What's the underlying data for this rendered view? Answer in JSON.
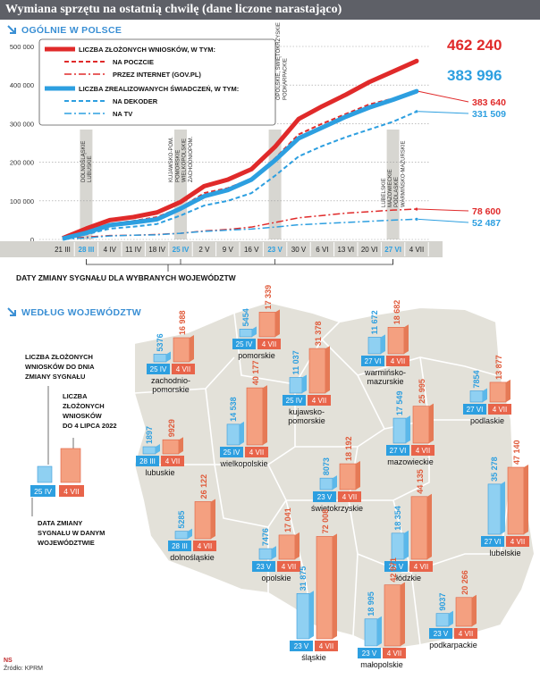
{
  "title": "Wymiana sprzętu na ostatnią chwilę (dane liczone narastająco)",
  "section1": "OGÓLNIE W POLSCE",
  "section2": "WEDŁUG WOJEWÓDZTW",
  "source": "Źródło: KPRM",
  "agency": "NS",
  "colors": {
    "red": "#e02a2a",
    "blue": "#2d9fe0",
    "grey": "#d4d3ce",
    "map": "#e3e1d9"
  },
  "chart_data": {
    "type": "line",
    "x": [
      "21 III",
      "28 III",
      "4 IV",
      "11 IV",
      "18 IV",
      "25 IV",
      "2 V",
      "9 V",
      "16 V",
      "23 V",
      "30 V",
      "6 VI",
      "13 VI",
      "20 VI",
      "27 VI",
      "4 VII"
    ],
    "highlight_x": [
      "28 III",
      "25 IV",
      "23 V",
      "27 VI"
    ],
    "ylim": [
      0,
      500000
    ],
    "yticks": [
      "0",
      "100 000",
      "200 000",
      "300 000",
      "400 000",
      "500 000"
    ],
    "series": [
      {
        "name": "LICZBA ZŁOŻONYCH WNIOSKÓW, W TYM:",
        "color": "#e02a2a",
        "style": "solid",
        "width": 5,
        "values": [
          3000,
          28000,
          50000,
          58000,
          70000,
          97000,
          138000,
          155000,
          182000,
          240000,
          312000,
          345000,
          375000,
          408000,
          435000,
          462240
        ],
        "end_label": "462 240"
      },
      {
        "name": "NA POCZCIE",
        "color": "#e02a2a",
        "style": "dash",
        "width": 2,
        "values": [
          2000,
          22000,
          40000,
          48000,
          58000,
          82000,
          120000,
          133000,
          157000,
          210000,
          272000,
          300000,
          325000,
          350000,
          365000,
          383640
        ],
        "end_label": "383 640"
      },
      {
        "name": "PRZEZ INTERNET (GOV.PL)",
        "color": "#e02a2a",
        "style": "dashdot",
        "width": 1.5,
        "values": [
          1000,
          6000,
          10000,
          11000,
          13000,
          16000,
          22000,
          26000,
          32000,
          44000,
          56000,
          62000,
          68000,
          72000,
          76000,
          78600
        ],
        "end_label": "78 600"
      },
      {
        "name": "LICZBA ZREALIZOWANYCH ŚWIADCZEŃ, W TYM:",
        "color": "#2d9fe0",
        "style": "solid",
        "width": 5,
        "values": [
          2000,
          17000,
          37000,
          44000,
          52000,
          80000,
          112000,
          128000,
          155000,
          205000,
          262000,
          290000,
          318000,
          342000,
          362000,
          383996
        ],
        "end_label": "383 996"
      },
      {
        "name": "NA DEKODER",
        "color": "#2d9fe0",
        "style": "dash",
        "width": 2,
        "values": [
          1500,
          13000,
          28000,
          33000,
          40000,
          62000,
          88000,
          100000,
          120000,
          165000,
          215000,
          242000,
          265000,
          285000,
          305000,
          331509
        ],
        "end_label": "331 509"
      },
      {
        "name": "NA TV",
        "color": "#2d9fe0",
        "style": "dashdot",
        "width": 1.5,
        "values": [
          500,
          4000,
          9000,
          11000,
          12000,
          16000,
          21000,
          24000,
          27000,
          32000,
          38000,
          41000,
          44000,
          47000,
          50000,
          52487
        ],
        "end_label": "52 487"
      }
    ],
    "annotations": [
      {
        "x": "28 III",
        "text": "DOLNOŚLĄSKIE LUBUSKIE"
      },
      {
        "x": "25 IV",
        "text": "KUJAWSKO-POM. POMORSKIE WIELKOPOLSKIE ZACHODNIOPOM."
      },
      {
        "x": "23 V",
        "text": "ŁÓDZKIE, ŚLĄSKIE MAŁOPOLSKIE OPOLSKIE, ŚWIĘTOKRZYSKIE PODKARPACKIE"
      },
      {
        "x": "27 VI",
        "text": "LUBELSKIE MAZOWIECKIE PODLASKIE WARMIŃSKO-MAZURSKIE"
      }
    ],
    "bracket_label": "DATY ZMIANY SYGNAŁU DLA WYBRANYCH WOJEWÓDZTW"
  },
  "legend_card": {
    "label_a": [
      "LICZBA ZŁOŻONYCH",
      "WNIOSKÓW DO DNIA",
      "ZMIANY SYGNAŁU"
    ],
    "label_b": [
      "LICZBA",
      "ZŁOŻONYCH",
      "WNIOSKÓW",
      "DO 4 LIPCA 2022"
    ],
    "label_c": [
      "DATA ZMIANY",
      "SYGNAŁU W DANYM",
      "WOJEWÓDZTWIE"
    ],
    "date_a": "25 IV",
    "date_b": "4 VII"
  },
  "regions": [
    {
      "name": [
        "zachodnio-",
        "pomorskie"
      ],
      "date": "25 IV",
      "before": 5376,
      "before_label": "5376",
      "after": 16988,
      "after_label": "16 988"
    },
    {
      "name": [
        "pomorskie"
      ],
      "date": "25 IV",
      "before": 5454,
      "before_label": "5454",
      "after": 17339,
      "after_label": "17 339"
    },
    {
      "name": [
        "warmińsko-",
        "mazurskie"
      ],
      "date": "27 VI",
      "before": 11672,
      "before_label": "11 672",
      "after": 18682,
      "after_label": "18 682"
    },
    {
      "name": [
        "podlaskie"
      ],
      "date": "27 VI",
      "before": 7854,
      "before_label": "7854",
      "after": 13877,
      "after_label": "13 877"
    },
    {
      "name": [
        "kujawsko-",
        "pomorskie"
      ],
      "date": "25 IV",
      "before": 11037,
      "before_label": "11 037",
      "after": 31378,
      "after_label": "31 378"
    },
    {
      "name": [
        "lubuskie"
      ],
      "date": "28 III",
      "before": 1897,
      "before_label": "1897",
      "after": 9929,
      "after_label": "9929"
    },
    {
      "name": [
        "wielkopolskie"
      ],
      "date": "25 IV",
      "before": 14538,
      "before_label": "14 538",
      "after": 40177,
      "after_label": "40 177"
    },
    {
      "name": [
        "mazowieckie"
      ],
      "date": "27 VI",
      "before": 17549,
      "before_label": "17 549",
      "after": 25995,
      "after_label": "25 995"
    },
    {
      "name": [
        "świętokrzyskie"
      ],
      "date": "23 V",
      "before": 8073,
      "before_label": "8073",
      "after": 18192,
      "after_label": "18 192"
    },
    {
      "name": [
        "dolnośląskie"
      ],
      "date": "28 III",
      "before": 5285,
      "before_label": "5285",
      "after": 26122,
      "after_label": "26 122"
    },
    {
      "name": [
        "opolskie"
      ],
      "date": "23 V",
      "before": 7476,
      "before_label": "7476",
      "after": 17041,
      "after_label": "17 041"
    },
    {
      "name": [
        "łódzkie"
      ],
      "date": "23 V",
      "before": 18354,
      "before_label": "18 354",
      "after": 44135,
      "after_label": "44 135"
    },
    {
      "name": [
        "lubelskie"
      ],
      "date": "27 VI",
      "before": 35278,
      "before_label": "35 278",
      "after": 47140,
      "after_label": "47 140"
    },
    {
      "name": [
        "śląskie"
      ],
      "date": "23 V",
      "before": 31875,
      "before_label": "31 875",
      "after": 72008,
      "after_label": "72 008"
    },
    {
      "name": [
        "małopolskie"
      ],
      "date": "23 V",
      "before": 18995,
      "before_label": "18 995",
      "after": 42971,
      "after_label": "42 971"
    },
    {
      "name": [
        "podkarpackie"
      ],
      "date": "23 V",
      "before": 9037,
      "before_label": "9037",
      "after": 20266,
      "after_label": "20 266"
    }
  ]
}
